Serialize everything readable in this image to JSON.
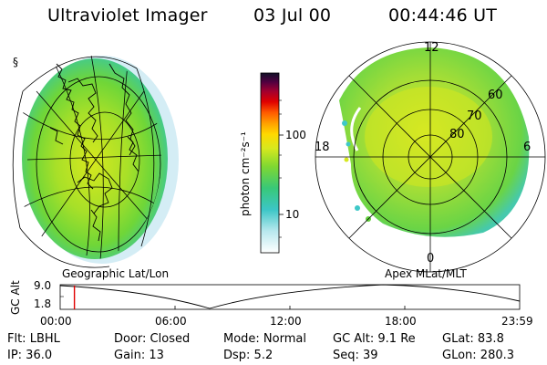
{
  "header": {
    "instrument": "Ultraviolet Imager",
    "date": "03 Jul 00",
    "time": "00:44:46 UT"
  },
  "left_panel": {
    "label": "Geographic Lat/Lon"
  },
  "right_panel": {
    "label": "Apex MLat/MLT",
    "mlt_labels": [
      "12",
      "18",
      "6",
      "0"
    ],
    "lat_labels": [
      "60",
      "70",
      "80"
    ]
  },
  "colorbar": {
    "unit_label": "photon cm⁻²s⁻¹",
    "scale": "log",
    "tick_labels": [
      "100",
      "10"
    ]
  },
  "altitude_plot": {
    "ylabel": "GC Alt",
    "ytick_top": "9.0",
    "ytick_bottom": "1.8",
    "xticks": [
      "00:00",
      "06:00",
      "12:00",
      "18:00",
      "23:59"
    ],
    "current_time_fraction": 0.031,
    "line_color": "#e00000"
  },
  "info": {
    "row1": {
      "flt": "Flt: LBHL",
      "door": "Door: Closed",
      "mode": "Mode: Normal",
      "gcalt": "GC Alt: 9.1 Re",
      "glat": "GLat:  83.8"
    },
    "row2": {
      "ip": "IP: 36.0",
      "gain": "Gain: 13",
      "dsp": "Dsp:    5.2",
      "seq": "Seq: 39",
      "glon": "GLon: 280.3"
    }
  },
  "colors": {
    "aurora_green": "#7fd832",
    "aurora_yellow": "#d6e81e",
    "aurora_cyan": "#3fc8c8"
  }
}
